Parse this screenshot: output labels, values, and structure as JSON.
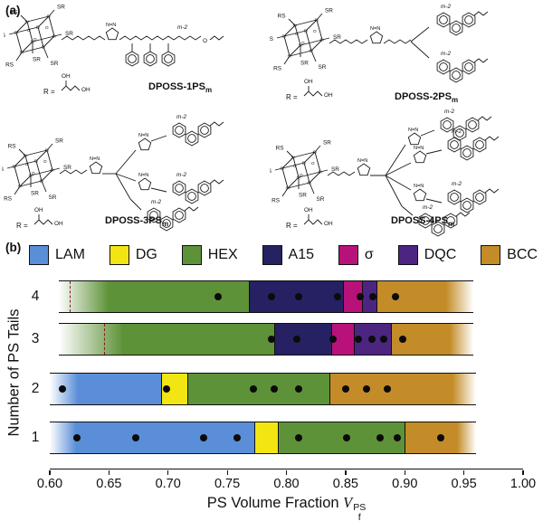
{
  "figure": {
    "panel_a_label": "(a)",
    "panel_b_label": "(b)"
  },
  "panel_a": {
    "labels": {
      "sr": "SR",
      "rs": "RS",
      "si": "Si",
      "o": "O",
      "triazole": "N=N",
      "repeat": "m-2",
      "r_eq": "R =",
      "oh": "OH"
    },
    "structures": [
      {
        "name": "DPOSS-1PS",
        "sub": "m",
        "tails": 1
      },
      {
        "name": "DPOSS-2PS",
        "sub": "m",
        "tails": 2
      },
      {
        "name": "DPOSS-3PS",
        "sub": "m",
        "tails": 3
      },
      {
        "name": "DPOSS-4PS",
        "sub": "m",
        "tails": 4
      }
    ]
  },
  "chart_data": {
    "type": "bar",
    "subtype": "horizontal_stacked_phase_diagram",
    "xlabel": {
      "prefix": "PS Volume Fraction ",
      "symbol": "V",
      "sub": "f",
      "sup": "PS"
    },
    "ylabel": "Number of PS Tails",
    "xlim": [
      0.6,
      1.0
    ],
    "xticks": [
      "0.60",
      "0.65",
      "0.70",
      "0.75",
      "0.80",
      "0.85",
      "0.90",
      "0.95",
      "1.00"
    ],
    "legend_position": "top",
    "legend": [
      {
        "label": "LAM",
        "color": "#5b8ed8"
      },
      {
        "label": "DG",
        "color": "#f3e512"
      },
      {
        "label": "HEX",
        "color": "#5e9238"
      },
      {
        "label": "A15",
        "color": "#262163"
      },
      {
        "label": "σ",
        "color": "#b8127a"
      },
      {
        "label": "DQC",
        "color": "#4c2581"
      },
      {
        "label": "BCC",
        "color": "#c38c28"
      }
    ],
    "rows": [
      {
        "y": "4",
        "segments": [
          {
            "phase": "HEX",
            "start": 0.608,
            "end": 0.65,
            "style": "fade-in"
          },
          {
            "phase": "HEX",
            "start": 0.65,
            "end": 0.768
          },
          {
            "phase": "A15",
            "start": 0.768,
            "end": 0.848
          },
          {
            "phase": "σ",
            "start": 0.848,
            "end": 0.864
          },
          {
            "phase": "DQC",
            "start": 0.864,
            "end": 0.876
          },
          {
            "phase": "BCC",
            "start": 0.876,
            "end": 0.935
          },
          {
            "phase": "BCC",
            "start": 0.935,
            "end": 0.958,
            "style": "fade-out"
          }
        ],
        "boundary": 0.6175,
        "points": [
          0.742,
          0.787,
          0.81,
          0.843,
          0.862,
          0.873,
          0.892
        ]
      },
      {
        "y": "3",
        "segments": [
          {
            "phase": "HEX",
            "start": 0.608,
            "end": 0.662,
            "style": "fade-in"
          },
          {
            "phase": "HEX",
            "start": 0.662,
            "end": 0.79
          },
          {
            "phase": "A15",
            "start": 0.79,
            "end": 0.838
          },
          {
            "phase": "σ",
            "start": 0.838,
            "end": 0.857
          },
          {
            "phase": "DQC",
            "start": 0.857,
            "end": 0.888
          },
          {
            "phase": "BCC",
            "start": 0.888,
            "end": 0.938
          },
          {
            "phase": "BCC",
            "start": 0.938,
            "end": 0.958,
            "style": "fade-out"
          }
        ],
        "boundary": 0.647,
        "points": [
          0.787,
          0.809,
          0.839,
          0.861,
          0.872,
          0.882,
          0.898
        ]
      },
      {
        "y": "2",
        "segments": [
          {
            "phase": "LAM",
            "start": 0.6,
            "end": 0.624,
            "style": "fade-in"
          },
          {
            "phase": "LAM",
            "start": 0.624,
            "end": 0.694
          },
          {
            "phase": "DG",
            "start": 0.694,
            "end": 0.716
          },
          {
            "phase": "HEX",
            "start": 0.716,
            "end": 0.836
          },
          {
            "phase": "BCC",
            "start": 0.836,
            "end": 0.94
          },
          {
            "phase": "BCC",
            "start": 0.94,
            "end": 0.96,
            "style": "fade-out"
          }
        ],
        "boundary": null,
        "points": [
          0.611,
          0.699,
          0.772,
          0.79,
          0.81,
          0.85,
          0.868,
          0.885
        ]
      },
      {
        "y": "1",
        "segments": [
          {
            "phase": "LAM",
            "start": 0.6,
            "end": 0.622,
            "style": "fade-in"
          },
          {
            "phase": "LAM",
            "start": 0.622,
            "end": 0.773
          },
          {
            "phase": "DG",
            "start": 0.773,
            "end": 0.793
          },
          {
            "phase": "HEX",
            "start": 0.793,
            "end": 0.9
          },
          {
            "phase": "BCC",
            "start": 0.9,
            "end": 0.944
          },
          {
            "phase": "BCC",
            "start": 0.944,
            "end": 0.96,
            "style": "fade-out"
          }
        ],
        "boundary": null,
        "points": [
          0.623,
          0.673,
          0.73,
          0.758,
          0.81,
          0.851,
          0.879,
          0.894,
          0.93
        ]
      }
    ]
  }
}
